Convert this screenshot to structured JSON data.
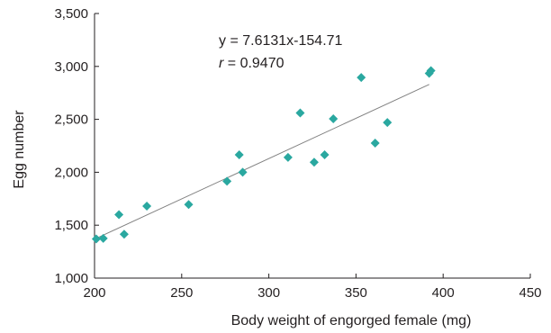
{
  "chart_data": {
    "type": "scatter",
    "title": "",
    "xlabel": "Body weight of engorged female (mg)",
    "ylabel": "Egg number",
    "xlim": [
      200,
      450
    ],
    "ylim": [
      1000,
      3500
    ],
    "x_ticks": [
      200,
      250,
      300,
      350,
      400,
      450
    ],
    "y_ticks": [
      1000,
      1500,
      2000,
      2500,
      3000,
      3500
    ],
    "x_tick_labels": [
      "200",
      "250",
      "300",
      "350",
      "400",
      "450"
    ],
    "y_tick_labels": [
      "1,000",
      "1,500",
      "2,000",
      "2,500",
      "3,000",
      "3,500"
    ],
    "grid": false,
    "marker": "diamond",
    "marker_color": "#2aa8a0",
    "series": [
      {
        "points": [
          {
            "x": 201,
            "y": 1370
          },
          {
            "x": 205,
            "y": 1375
          },
          {
            "x": 214,
            "y": 1600
          },
          {
            "x": 217,
            "y": 1415
          },
          {
            "x": 230,
            "y": 1680
          },
          {
            "x": 254,
            "y": 1695
          },
          {
            "x": 276,
            "y": 1915
          },
          {
            "x": 283,
            "y": 2165
          },
          {
            "x": 285,
            "y": 2000
          },
          {
            "x": 311,
            "y": 2140
          },
          {
            "x": 318,
            "y": 2560
          },
          {
            "x": 326,
            "y": 2095
          },
          {
            "x": 332,
            "y": 2165
          },
          {
            "x": 337,
            "y": 2505
          },
          {
            "x": 353,
            "y": 2895
          },
          {
            "x": 361,
            "y": 2275
          },
          {
            "x": 368,
            "y": 2470
          },
          {
            "x": 392,
            "y": 2935
          },
          {
            "x": 393,
            "y": 2960
          }
        ]
      }
    ],
    "trendline": {
      "slope": 7.6131,
      "intercept": -154.71,
      "x_range": [
        202,
        392
      ],
      "color": "#808080"
    },
    "annotations": {
      "equation": "y = 7.6131x-154.71",
      "r_symbol": "r",
      "r_value": " = 0.9470"
    }
  }
}
